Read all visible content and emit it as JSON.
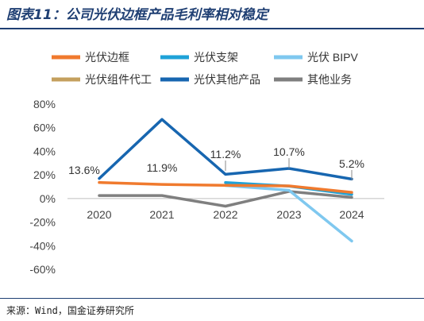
{
  "header": {
    "title": "图表11：公司光伏边框产品毛利率相对稳定"
  },
  "footer": {
    "source": "来源：Wind，国金证券研究所"
  },
  "chart_data": {
    "type": "line",
    "categories": [
      "2020",
      "2021",
      "2022",
      "2023",
      "2024"
    ],
    "yticks": [
      "80%",
      "60%",
      "40%",
      "20%",
      "0%",
      "-20%",
      "-40%",
      "-60%"
    ],
    "ylim": [
      -60,
      80
    ],
    "grid": false,
    "legend_position": "top",
    "series": [
      {
        "name": "光伏边框",
        "color": "#f07a2e",
        "values": [
          13.6,
          11.9,
          11.2,
          10.7,
          5.2
        ]
      },
      {
        "name": "光伏支架",
        "color": "#1ea2d8",
        "values": [
          null,
          null,
          13.5,
          10.5,
          3.5
        ]
      },
      {
        "name": "光伏 BIPV",
        "color": "#7fc8ef",
        "values": [
          null,
          null,
          11.0,
          7.0,
          -36.0
        ]
      },
      {
        "name": "光伏组件代工",
        "color": "#c4a05e",
        "values": [
          null,
          null,
          null,
          null,
          null
        ]
      },
      {
        "name": "光伏其他产品",
        "color": "#1766b0",
        "values": [
          17.0,
          67.0,
          20.5,
          25.5,
          16.5
        ]
      },
      {
        "name": "其他业务",
        "color": "#7f7f7f",
        "values": [
          2.5,
          2.5,
          -6.5,
          6.0,
          1.0
        ]
      }
    ],
    "data_labels": [
      {
        "category": "2020",
        "text": "13.6%"
      },
      {
        "category": "2021",
        "text": "11.9%"
      },
      {
        "category": "2022",
        "text": "11.2%"
      },
      {
        "category": "2023",
        "text": "10.7%"
      },
      {
        "category": "2024",
        "text": "5.2%"
      }
    ]
  }
}
